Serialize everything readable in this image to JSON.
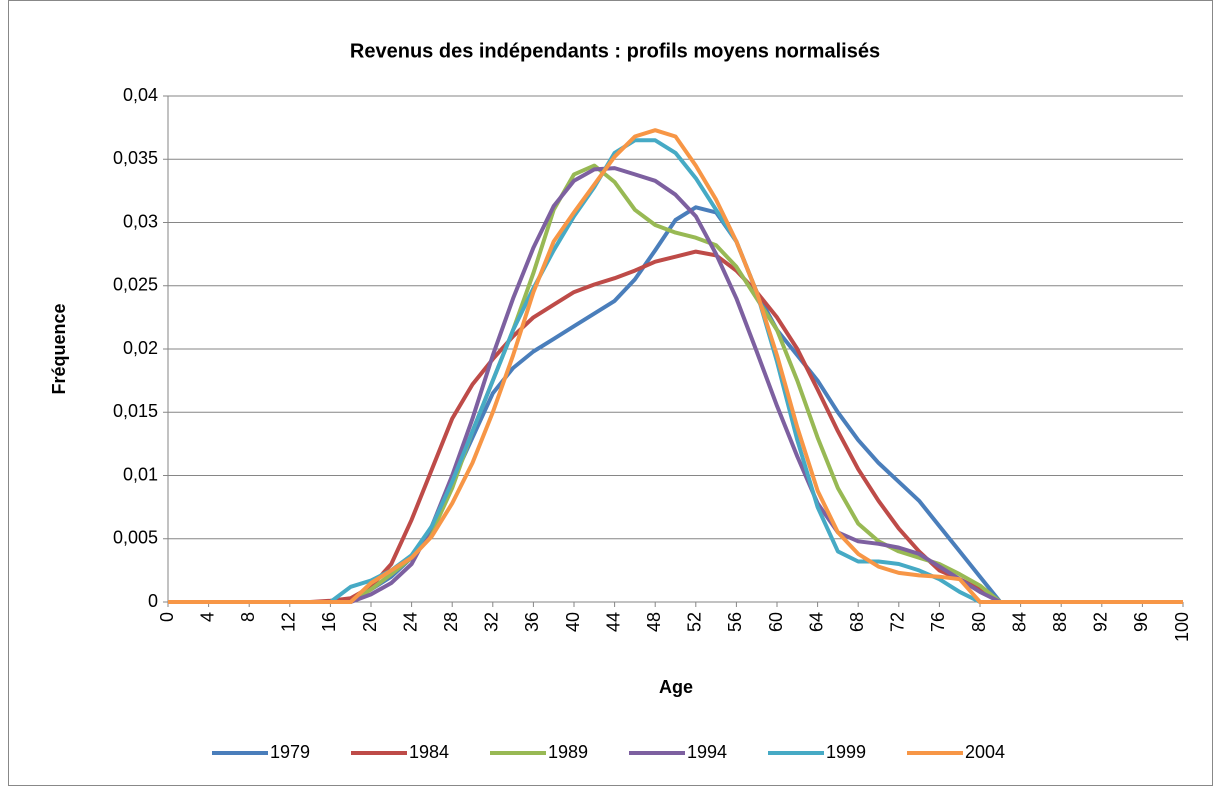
{
  "chart_data": {
    "type": "line",
    "title": "Revenus des indépendants : profils moyens normalisés",
    "x_label": "Age",
    "y_label": "Fréquence",
    "x": [
      0,
      2,
      4,
      6,
      8,
      10,
      12,
      14,
      16,
      18,
      20,
      22,
      24,
      26,
      28,
      30,
      32,
      34,
      36,
      38,
      40,
      42,
      44,
      46,
      48,
      50,
      52,
      54,
      56,
      58,
      60,
      62,
      64,
      66,
      68,
      70,
      72,
      74,
      76,
      78,
      80,
      82,
      84,
      86,
      88,
      90,
      92,
      94,
      96,
      98,
      100
    ],
    "xlim": [
      0,
      100
    ],
    "xticks": [
      0,
      4,
      8,
      12,
      16,
      20,
      24,
      28,
      32,
      36,
      40,
      44,
      48,
      52,
      56,
      60,
      64,
      68,
      72,
      76,
      80,
      84,
      88,
      92,
      96,
      100
    ],
    "ylim": [
      0,
      0.04
    ],
    "yticks": [
      0,
      {
        "value": 0.005,
        "label": "0,005"
      },
      {
        "value": 0.01,
        "label": "0,01"
      },
      {
        "value": 0.015,
        "label": "0,015"
      },
      {
        "value": 0.02,
        "label": "0,02"
      },
      {
        "value": 0.025,
        "label": "0,025"
      },
      {
        "value": 0.03,
        "label": "0,03"
      },
      {
        "value": 0.035,
        "label": "0,035"
      },
      {
        "value": 0.04,
        "label": "0,04"
      }
    ],
    "grid": true,
    "legend": "bottom",
    "series": [
      {
        "name": "1979",
        "color": "#4a7ebb",
        "values": [
          0,
          0,
          0,
          0,
          0,
          0,
          0,
          0,
          0,
          0.0002,
          0.001,
          0.002,
          0.0035,
          0.006,
          0.0095,
          0.013,
          0.0165,
          0.0185,
          0.0198,
          0.0208,
          0.0218,
          0.0228,
          0.0238,
          0.0255,
          0.0278,
          0.0302,
          0.0312,
          0.0308,
          0.0285,
          0.0245,
          0.0215,
          0.0195,
          0.0175,
          0.015,
          0.0128,
          0.011,
          0.0095,
          0.008,
          0.006,
          0.004,
          0.002,
          0,
          0,
          0,
          0,
          0,
          0,
          0,
          0,
          0,
          0
        ]
      },
      {
        "name": "1984",
        "color": "#be4b48",
        "values": [
          0,
          0,
          0,
          0,
          0,
          0,
          0,
          0,
          0.0001,
          0.0003,
          0.0012,
          0.003,
          0.0065,
          0.0105,
          0.0145,
          0.0172,
          0.0192,
          0.021,
          0.0225,
          0.0235,
          0.0245,
          0.0251,
          0.0256,
          0.0262,
          0.0269,
          0.0273,
          0.0277,
          0.0274,
          0.0262,
          0.0245,
          0.0225,
          0.02,
          0.0168,
          0.0135,
          0.0105,
          0.008,
          0.0058,
          0.004,
          0.0025,
          0.0018,
          0.001,
          0,
          0,
          0,
          0,
          0,
          0,
          0,
          0,
          0,
          0
        ]
      },
      {
        "name": "1989",
        "color": "#98b954",
        "values": [
          0,
          0,
          0,
          0,
          0,
          0,
          0,
          0,
          0,
          0,
          0.001,
          0.0022,
          0.0035,
          0.0055,
          0.009,
          0.0135,
          0.0175,
          0.0215,
          0.026,
          0.031,
          0.0338,
          0.0345,
          0.0332,
          0.031,
          0.0298,
          0.0292,
          0.0288,
          0.0282,
          0.0265,
          0.024,
          0.0215,
          0.0175,
          0.013,
          0.009,
          0.0062,
          0.0048,
          0.004,
          0.0035,
          0.003,
          0.0022,
          0.0013,
          0,
          0,
          0,
          0,
          0,
          0,
          0,
          0,
          0,
          0
        ]
      },
      {
        "name": "1994",
        "color": "#7d60a0",
        "values": [
          0,
          0,
          0,
          0,
          0,
          0,
          0,
          0,
          0,
          0,
          0.0006,
          0.0015,
          0.003,
          0.006,
          0.01,
          0.0145,
          0.0195,
          0.024,
          0.028,
          0.0313,
          0.0333,
          0.0342,
          0.0343,
          0.0338,
          0.0333,
          0.0322,
          0.0305,
          0.0275,
          0.024,
          0.0198,
          0.0155,
          0.0115,
          0.0078,
          0.0055,
          0.0048,
          0.0046,
          0.0043,
          0.0038,
          0.0028,
          0.0018,
          0.0008,
          0,
          0,
          0,
          0,
          0,
          0,
          0,
          0,
          0,
          0
        ]
      },
      {
        "name": "1999",
        "color": "#46aac5",
        "values": [
          0,
          0,
          0,
          0,
          0,
          0,
          0,
          0,
          0,
          0.0012,
          0.0017,
          0.0025,
          0.0037,
          0.006,
          0.0095,
          0.0135,
          0.0175,
          0.0215,
          0.0248,
          0.0278,
          0.0305,
          0.0328,
          0.0355,
          0.0365,
          0.0365,
          0.0355,
          0.0335,
          0.031,
          0.0285,
          0.0245,
          0.019,
          0.0128,
          0.0075,
          0.004,
          0.0032,
          0.0032,
          0.003,
          0.0025,
          0.0018,
          0.0008,
          0,
          0,
          0,
          0,
          0,
          0,
          0,
          0,
          0,
          0,
          0
        ]
      },
      {
        "name": "2004",
        "color": "#f79646",
        "values": [
          0,
          0,
          0,
          0,
          0,
          0,
          0,
          0,
          0,
          0,
          0.0015,
          0.0025,
          0.0035,
          0.0052,
          0.0078,
          0.011,
          0.015,
          0.0195,
          0.0245,
          0.0285,
          0.0308,
          0.033,
          0.0352,
          0.0368,
          0.0373,
          0.0368,
          0.0345,
          0.0318,
          0.0285,
          0.0245,
          0.0195,
          0.0138,
          0.0088,
          0.0055,
          0.0038,
          0.0028,
          0.0023,
          0.0021,
          0.002,
          0.0018,
          0,
          0,
          0,
          0,
          0,
          0,
          0,
          0,
          0,
          0,
          0
        ]
      }
    ]
  }
}
